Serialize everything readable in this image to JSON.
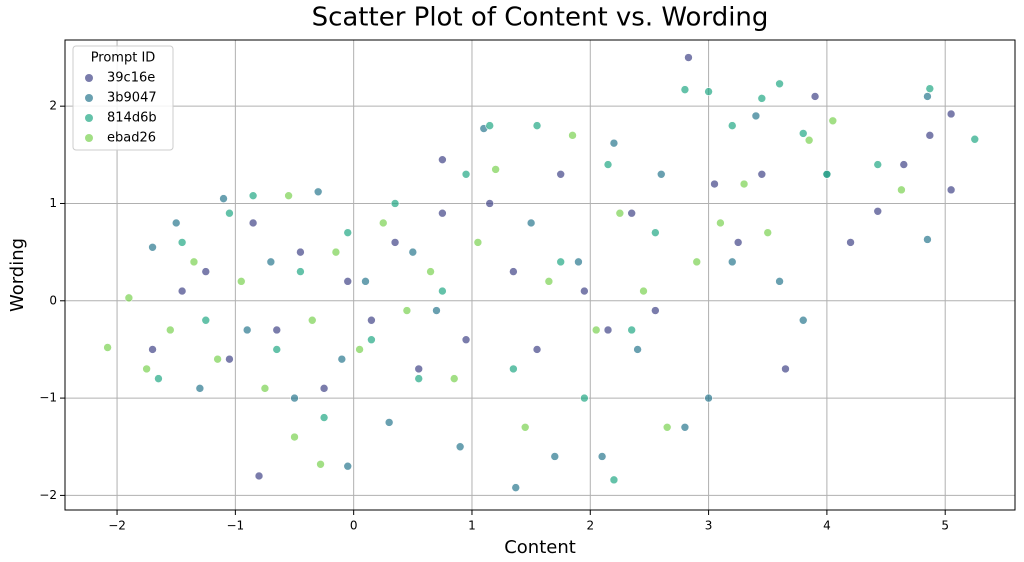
{
  "chart_data": {
    "type": "scatter",
    "title": "Scatter Plot of Content vs. Wording",
    "x_label": "Content",
    "y_label": "Wording",
    "legend_title": "Prompt ID",
    "legend_position": "upper left",
    "grid": true,
    "xlim": [
      -2.44,
      5.59
    ],
    "ylim": [
      -2.15,
      2.68
    ],
    "xticks": [
      {
        "value": -2,
        "label": "−2"
      },
      {
        "value": -1,
        "label": "−1"
      },
      0,
      1,
      2,
      3,
      4,
      5
    ],
    "yticks": [
      {
        "value": -2,
        "label": "−2"
      },
      {
        "value": -1,
        "label": "−1"
      },
      0,
      1,
      2
    ],
    "series": [
      {
        "name": "39c16e",
        "color": "#414487",
        "x": [
          -1.7,
          -1.45,
          -1.25,
          -1.05,
          -0.85,
          -0.65,
          -0.45,
          -0.25,
          -0.05,
          0.15,
          0.35,
          0.55,
          0.75,
          0.95,
          1.15,
          1.35,
          1.55,
          1.75,
          1.95,
          2.15,
          2.35,
          2.55,
          2.83,
          3.05,
          3.25,
          3.45,
          3.65,
          3.9,
          4.2,
          4.43,
          4.65,
          4.87,
          5.05,
          5.05,
          -0.8,
          0.75
        ],
        "y": [
          -0.5,
          0.1,
          0.3,
          -0.6,
          0.8,
          -0.3,
          0.5,
          -0.9,
          0.2,
          -0.2,
          0.6,
          -0.7,
          0.9,
          -0.4,
          1.0,
          0.3,
          -0.5,
          1.3,
          0.1,
          -0.3,
          0.9,
          -0.1,
          2.5,
          1.2,
          0.6,
          1.3,
          -0.7,
          2.1,
          0.6,
          0.92,
          1.4,
          1.7,
          1.92,
          1.14,
          -1.8,
          1.45
        ]
      },
      {
        "name": "3b9047",
        "color": "#2a788e",
        "x": [
          -1.7,
          -1.5,
          -1.3,
          -1.1,
          -0.9,
          -0.7,
          -0.5,
          -0.3,
          -0.1,
          0.1,
          0.3,
          0.5,
          0.7,
          0.9,
          1.1,
          1.37,
          1.5,
          1.7,
          1.9,
          2.1,
          2.2,
          2.4,
          2.6,
          2.8,
          3.0,
          3.2,
          3.4,
          3.6,
          3.8,
          4.0,
          4.85,
          4.85,
          -0.05
        ],
        "y": [
          0.55,
          0.8,
          -0.9,
          1.05,
          -0.3,
          0.4,
          -1.0,
          1.12,
          -0.6,
          0.2,
          -1.25,
          0.5,
          -0.1,
          -1.5,
          1.77,
          -1.92,
          0.8,
          -1.6,
          0.4,
          -1.6,
          1.62,
          -0.5,
          1.3,
          -1.3,
          -1.0,
          0.4,
          1.9,
          0.2,
          -0.2,
          1.3,
          2.1,
          0.63,
          -1.7
        ]
      },
      {
        "name": "814d6b",
        "color": "#22a884",
        "x": [
          -1.65,
          -1.45,
          -1.25,
          -1.05,
          -0.85,
          -0.65,
          -0.45,
          -0.25,
          -0.05,
          0.15,
          0.35,
          0.55,
          0.75,
          0.95,
          1.15,
          1.35,
          1.55,
          1.75,
          1.95,
          2.15,
          2.35,
          2.55,
          2.8,
          3.0,
          3.2,
          3.45,
          3.6,
          3.8,
          4.0,
          4.43,
          4.87,
          5.25,
          2.2
        ],
        "y": [
          -0.8,
          0.6,
          -0.2,
          0.9,
          1.08,
          -0.5,
          0.3,
          -1.2,
          0.7,
          -0.4,
          1.0,
          -0.8,
          0.1,
          1.3,
          1.8,
          -0.7,
          1.8,
          0.4,
          -1.0,
          1.4,
          -0.3,
          0.7,
          2.17,
          2.15,
          1.8,
          2.08,
          2.23,
          1.72,
          1.3,
          1.4,
          2.18,
          1.66,
          -1.84
        ]
      },
      {
        "name": "ebad26",
        "color": "#7ad151",
        "x": [
          -2.08,
          -1.9,
          -1.75,
          -1.55,
          -1.35,
          -1.15,
          -0.95,
          -0.75,
          -0.55,
          -0.35,
          -0.15,
          0.05,
          0.25,
          0.45,
          0.65,
          0.85,
          1.05,
          1.2,
          1.45,
          1.65,
          1.85,
          2.05,
          2.25,
          2.45,
          2.65,
          2.9,
          3.1,
          3.3,
          3.5,
          3.85,
          4.05,
          4.63,
          -0.5,
          -0.28
        ],
        "y": [
          -0.48,
          0.03,
          -0.7,
          -0.3,
          0.4,
          -0.6,
          0.2,
          -0.9,
          1.08,
          -0.2,
          0.5,
          -0.5,
          0.8,
          -0.1,
          0.3,
          -0.8,
          0.6,
          1.35,
          -1.3,
          0.2,
          1.7,
          -0.3,
          0.9,
          0.1,
          -1.3,
          0.4,
          0.8,
          1.2,
          0.7,
          1.65,
          1.85,
          1.14,
          -1.4,
          -1.68
        ]
      }
    ]
  }
}
